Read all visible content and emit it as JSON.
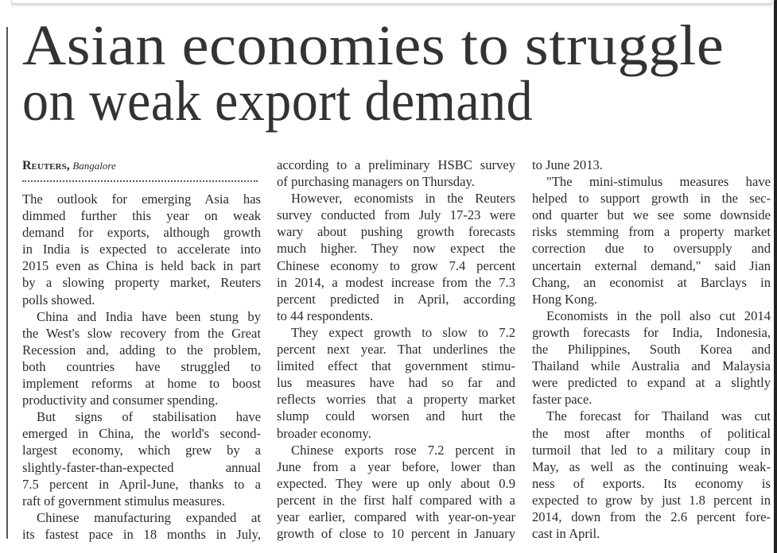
{
  "headline": [
    "Asian economies to struggle",
    "on weak export demand"
  ],
  "byline": {
    "agency": "Reuters,",
    "place": "Bangalore"
  },
  "columns": [
    [
      {
        "indent": false,
        "lines": [
          "The outlook for emerging Asia has",
          "dimmed further this year on weak",
          "demand for exports, although growth",
          "in India is expected to accelerate into",
          "2015 even as China is held back in part",
          "by a slowing property market, Reuters",
          "polls showed."
        ]
      },
      {
        "indent": true,
        "lines": [
          "China and India have been stung by",
          "the West's slow recovery from the Great",
          "Recession and, adding to the problem,",
          "both countries have struggled to",
          "implement reforms at home to boost",
          "productivity and consumer spending."
        ]
      },
      {
        "indent": true,
        "lines": [
          "But signs of stabilisation have",
          "emerged in China, the world's second-",
          "largest economy, which grew by a",
          "slightly-faster-than-expected annual",
          "7.5 percent in April-June, thanks to a",
          "raft of government stimulus measures."
        ]
      },
      {
        "indent": true,
        "open": true,
        "lines": [
          "Chinese manufacturing expanded at",
          "its fastest pace in 18 months in July,"
        ]
      }
    ],
    [
      {
        "indent": false,
        "lines": [
          "according to a preliminary HSBC survey",
          "of purchasing managers on Thursday."
        ]
      },
      {
        "indent": true,
        "lines": [
          "However, economists in the Reuters",
          "survey conducted from July 17-23 were",
          "wary about pushing growth forecasts",
          "much higher. They now expect the",
          "Chinese economy to grow 7.4 percent",
          "in 2014, a modest increase from the 7.3",
          "percent predicted in April, according",
          "to 44 respondents."
        ]
      },
      {
        "indent": true,
        "lines": [
          "They expect growth to slow to 7.2",
          "percent next year. That underlines the",
          "limited effect that government stimu-",
          "lus measures have had so far and",
          "reflects worries that a property market",
          "slump could worsen and hurt the",
          "broader economy."
        ]
      },
      {
        "indent": true,
        "open": true,
        "lines": [
          "Chinese exports rose 7.2 percent in",
          "June from a year before, lower than",
          "expected. They were up only about 0.9",
          "percent in the first half compared with a",
          "year earlier, compared with year-on-year",
          "growth of close to 10 percent in January"
        ]
      }
    ],
    [
      {
        "indent": false,
        "lines": [
          "to June 2013."
        ]
      },
      {
        "indent": true,
        "lines": [
          "\"The mini-stimulus measures have",
          "helped to support growth in the sec-",
          "ond quarter but we see some downside",
          "risks stemming from a property market",
          "correction due to oversupply and",
          "uncertain external demand,\" said Jian",
          "Chang, an economist at Barclays in",
          "Hong Kong."
        ]
      },
      {
        "indent": true,
        "lines": [
          "Economists in the poll also cut 2014",
          "growth forecasts for India, Indonesia,",
          "the Philippines, South Korea and",
          "Thailand while Australia and Malaysia",
          "were predicted to expand at a slightly",
          "faster pace."
        ]
      },
      {
        "indent": true,
        "lines": [
          "The forecast for Thailand was cut",
          "the most after months of political",
          "turmoil that led to a military coup in",
          "May, as well as the continuing weak-",
          "ness of exports. Its economy is",
          "expected to grow by just 1.8 percent in",
          "2014, down from the 2.6 percent fore-",
          "cast in April."
        ]
      }
    ]
  ]
}
